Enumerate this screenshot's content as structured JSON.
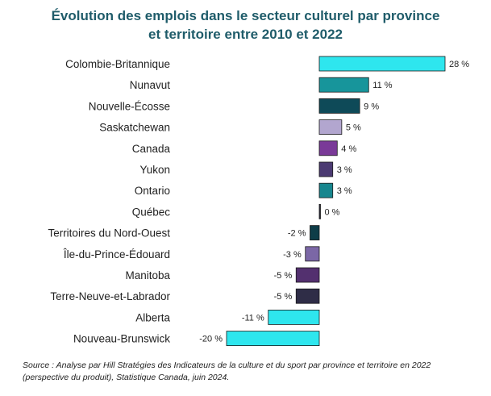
{
  "chart_data": {
    "type": "bar",
    "orientation": "horizontal",
    "title": [
      "Évolution des emplois dans le secteur culturel par province",
      "et territoire entre 2010 et 2022"
    ],
    "categories": [
      "Colombie-Britannique",
      "Nunavut",
      "Nouvelle-Écosse",
      "Saskatchewan",
      "Canada",
      "Yukon",
      "Ontario",
      "Québec",
      "Territoires du Nord-Ouest",
      "Île-du-Prince-Édouard",
      "Manitoba",
      "Terre-Neuve-et-Labrador",
      "Alberta",
      "Nouveau-Brunswick"
    ],
    "values": [
      28,
      11,
      9,
      5,
      4,
      3,
      3,
      0,
      -2,
      -3,
      -5,
      -5,
      -11,
      -20
    ],
    "value_labels": [
      "28 %",
      "11 %",
      "9 %",
      "5 %",
      "4 %",
      "3 %",
      "3 %",
      "0 %",
      "-2 %",
      "-3 %",
      "-5 %",
      "-5 %",
      "-11 %",
      "-20 %"
    ],
    "colors": [
      "#2ee6ee",
      "#17959b",
      "#0e4a58",
      "#b2a6cf",
      "#7a3a98",
      "#4b3a72",
      "#17868e",
      "#2a2a3a",
      "#0e3d48",
      "#7b67a6",
      "#53306f",
      "#2f2d47",
      "#2ee6ee",
      "#2ee6ee"
    ],
    "xlim": [
      -20,
      28
    ],
    "xlabel": "",
    "ylabel": "",
    "grid": false,
    "legend": "none"
  },
  "source": "Source : Analyse par Hill Stratégies des Indicateurs de la culture et du sport par province et territoire en 2022  (perspective du produit), Statistique Canada, juin 2024."
}
